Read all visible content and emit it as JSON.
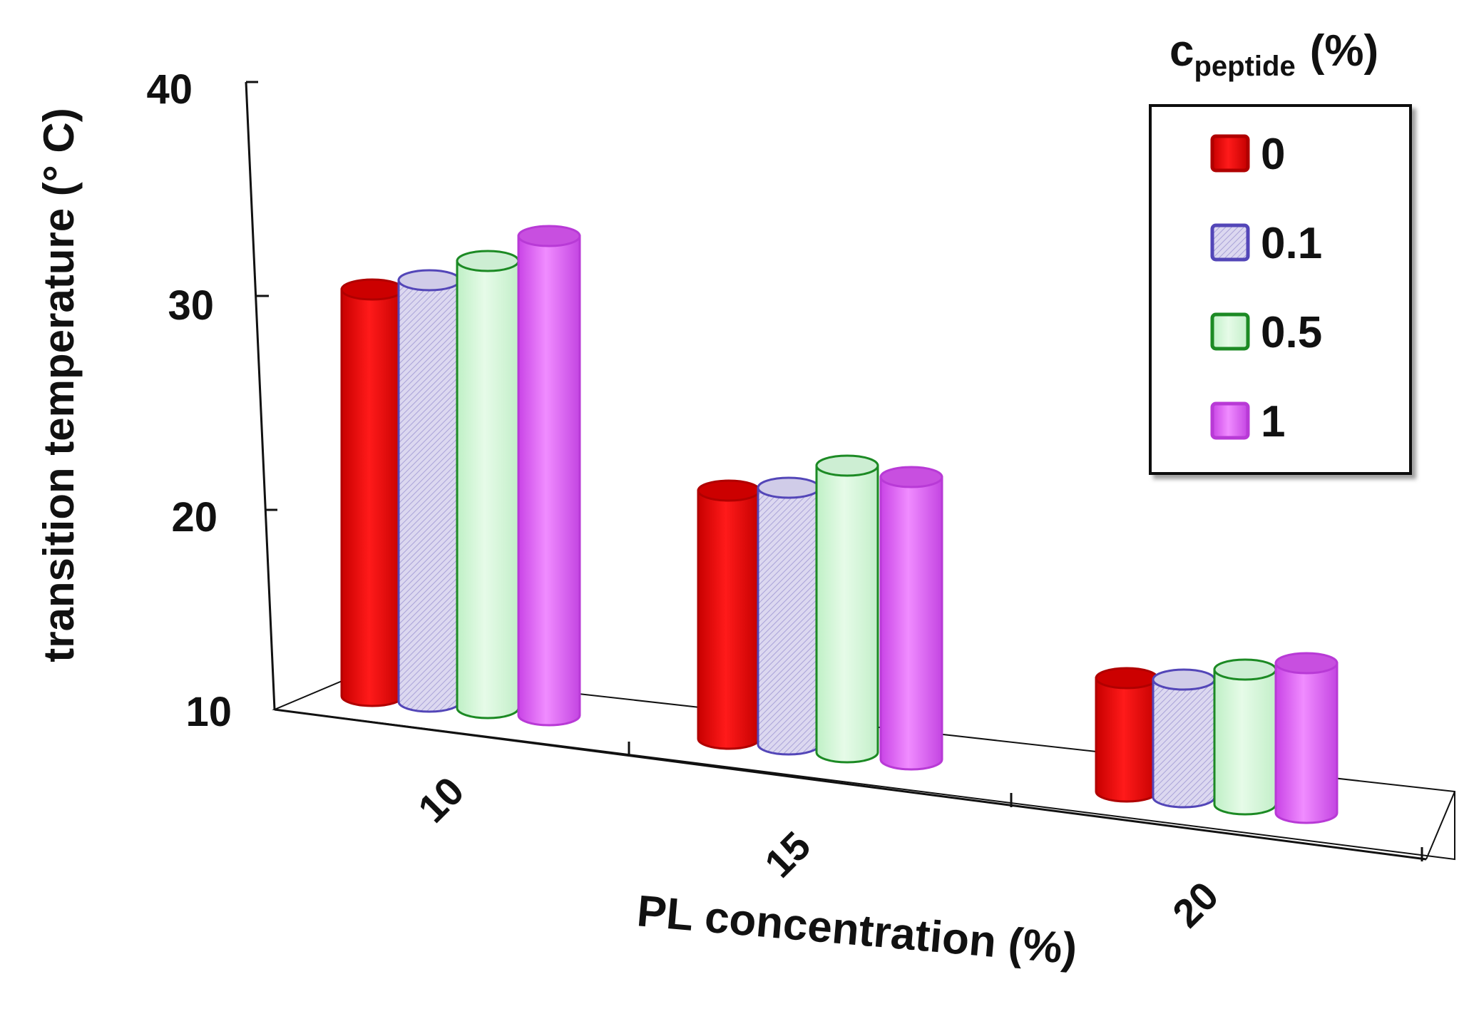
{
  "chart_data": {
    "type": "bar",
    "style": "3d-cylinder",
    "xlabel": "PL concentration (%)",
    "ylabel": "transition temperature (° C)",
    "ylim": [
      10,
      40
    ],
    "yticks": [
      "10",
      "20",
      "30",
      "40"
    ],
    "categories": [
      "10",
      "15",
      "20"
    ],
    "legend": {
      "title_main": "c",
      "title_sub": "peptide",
      "title_suffix": "(%)",
      "placement": "top-right"
    },
    "series": [
      {
        "name": "0",
        "color": "#e00000",
        "pattern": "solid",
        "values": [
          29.0,
          21.6,
          15.3
        ]
      },
      {
        "name": "0.1",
        "color": "#6a5cc4",
        "pattern": "hatch",
        "values": [
          29.7,
          22.0,
          15.5
        ]
      },
      {
        "name": "0.5",
        "color": "#1e8f2a",
        "pattern": "light",
        "values": [
          30.9,
          23.4,
          16.3
        ]
      },
      {
        "name": "1",
        "color": "#d65bf0",
        "pattern": "solid",
        "values": [
          32.4,
          23.2,
          17.0
        ]
      }
    ]
  }
}
